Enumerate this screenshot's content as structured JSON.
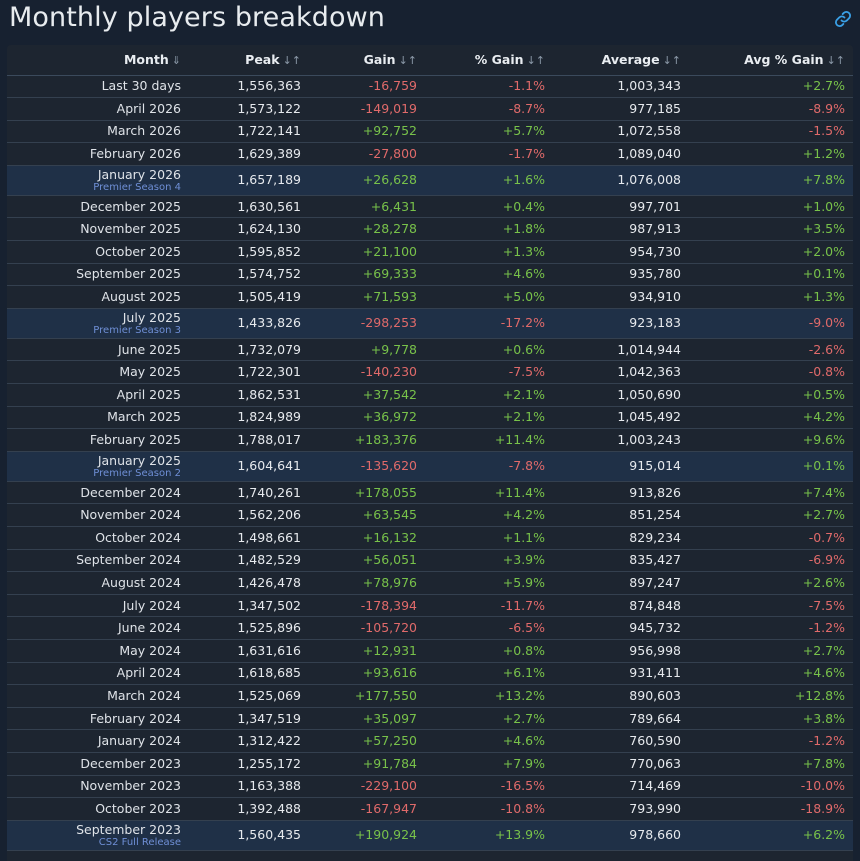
{
  "title": "Monthly players breakdown",
  "columns": [
    {
      "label": "Month",
      "sort": "⇓"
    },
    {
      "label": "Peak",
      "sort": "↓↑"
    },
    {
      "label": "Gain",
      "sort": "↓↑"
    },
    {
      "label": "% Gain",
      "sort": "↓↑"
    },
    {
      "label": "Average",
      "sort": "↓↑"
    },
    {
      "label": "Avg % Gain",
      "sort": "↓↑"
    }
  ],
  "rows": [
    {
      "month": "Last 30 days",
      "peak": "1,556,363",
      "gain": "-16,759",
      "pgain": "-1.1%",
      "avg": "1,003,343",
      "apgain": "+2.7%"
    },
    {
      "month": "April 2026",
      "peak": "1,573,122",
      "gain": "-149,019",
      "pgain": "-8.7%",
      "avg": "977,185",
      "apgain": "-8.9%"
    },
    {
      "month": "March 2026",
      "peak": "1,722,141",
      "gain": "+92,752",
      "pgain": "+5.7%",
      "avg": "1,072,558",
      "apgain": "-1.5%"
    },
    {
      "month": "February 2026",
      "peak": "1,629,389",
      "gain": "-27,800",
      "pgain": "-1.7%",
      "avg": "1,089,040",
      "apgain": "+1.2%"
    },
    {
      "month": "January 2026",
      "sub": "Premier Season 4",
      "peak": "1,657,189",
      "gain": "+26,628",
      "pgain": "+1.6%",
      "avg": "1,076,008",
      "apgain": "+7.8%"
    },
    {
      "month": "December 2025",
      "peak": "1,630,561",
      "gain": "+6,431",
      "pgain": "+0.4%",
      "avg": "997,701",
      "apgain": "+1.0%"
    },
    {
      "month": "November 2025",
      "peak": "1,624,130",
      "gain": "+28,278",
      "pgain": "+1.8%",
      "avg": "987,913",
      "apgain": "+3.5%"
    },
    {
      "month": "October 2025",
      "peak": "1,595,852",
      "gain": "+21,100",
      "pgain": "+1.3%",
      "avg": "954,730",
      "apgain": "+2.0%"
    },
    {
      "month": "September 2025",
      "peak": "1,574,752",
      "gain": "+69,333",
      "pgain": "+4.6%",
      "avg": "935,780",
      "apgain": "+0.1%"
    },
    {
      "month": "August 2025",
      "peak": "1,505,419",
      "gain": "+71,593",
      "pgain": "+5.0%",
      "avg": "934,910",
      "apgain": "+1.3%"
    },
    {
      "month": "July 2025",
      "sub": "Premier Season 3",
      "peak": "1,433,826",
      "gain": "-298,253",
      "pgain": "-17.2%",
      "avg": "923,183",
      "apgain": "-9.0%"
    },
    {
      "month": "June 2025",
      "peak": "1,732,079",
      "gain": "+9,778",
      "pgain": "+0.6%",
      "avg": "1,014,944",
      "apgain": "-2.6%"
    },
    {
      "month": "May 2025",
      "peak": "1,722,301",
      "gain": "-140,230",
      "pgain": "-7.5%",
      "avg": "1,042,363",
      "apgain": "-0.8%"
    },
    {
      "month": "April 2025",
      "peak": "1,862,531",
      "gain": "+37,542",
      "pgain": "+2.1%",
      "avg": "1,050,690",
      "apgain": "+0.5%"
    },
    {
      "month": "March 2025",
      "peak": "1,824,989",
      "gain": "+36,972",
      "pgain": "+2.1%",
      "avg": "1,045,492",
      "apgain": "+4.2%"
    },
    {
      "month": "February 2025",
      "peak": "1,788,017",
      "gain": "+183,376",
      "pgain": "+11.4%",
      "avg": "1,003,243",
      "apgain": "+9.6%"
    },
    {
      "month": "January 2025",
      "sub": "Premier Season 2",
      "peak": "1,604,641",
      "gain": "-135,620",
      "pgain": "-7.8%",
      "avg": "915,014",
      "apgain": "+0.1%"
    },
    {
      "month": "December 2024",
      "peak": "1,740,261",
      "gain": "+178,055",
      "pgain": "+11.4%",
      "avg": "913,826",
      "apgain": "+7.4%"
    },
    {
      "month": "November 2024",
      "peak": "1,562,206",
      "gain": "+63,545",
      "pgain": "+4.2%",
      "avg": "851,254",
      "apgain": "+2.7%"
    },
    {
      "month": "October 2024",
      "peak": "1,498,661",
      "gain": "+16,132",
      "pgain": "+1.1%",
      "avg": "829,234",
      "apgain": "-0.7%"
    },
    {
      "month": "September 2024",
      "peak": "1,482,529",
      "gain": "+56,051",
      "pgain": "+3.9%",
      "avg": "835,427",
      "apgain": "-6.9%"
    },
    {
      "month": "August 2024",
      "peak": "1,426,478",
      "gain": "+78,976",
      "pgain": "+5.9%",
      "avg": "897,247",
      "apgain": "+2.6%"
    },
    {
      "month": "July 2024",
      "peak": "1,347,502",
      "gain": "-178,394",
      "pgain": "-11.7%",
      "avg": "874,848",
      "apgain": "-7.5%"
    },
    {
      "month": "June 2024",
      "peak": "1,525,896",
      "gain": "-105,720",
      "pgain": "-6.5%",
      "avg": "945,732",
      "apgain": "-1.2%"
    },
    {
      "month": "May 2024",
      "peak": "1,631,616",
      "gain": "+12,931",
      "pgain": "+0.8%",
      "avg": "956,998",
      "apgain": "+2.7%"
    },
    {
      "month": "April 2024",
      "peak": "1,618,685",
      "gain": "+93,616",
      "pgain": "+6.1%",
      "avg": "931,411",
      "apgain": "+4.6%"
    },
    {
      "month": "March 2024",
      "peak": "1,525,069",
      "gain": "+177,550",
      "pgain": "+13.2%",
      "avg": "890,603",
      "apgain": "+12.8%"
    },
    {
      "month": "February 2024",
      "peak": "1,347,519",
      "gain": "+35,097",
      "pgain": "+2.7%",
      "avg": "789,664",
      "apgain": "+3.8%"
    },
    {
      "month": "January 2024",
      "peak": "1,312,422",
      "gain": "+57,250",
      "pgain": "+4.6%",
      "avg": "760,590",
      "apgain": "-1.2%"
    },
    {
      "month": "December 2023",
      "peak": "1,255,172",
      "gain": "+91,784",
      "pgain": "+7.9%",
      "avg": "770,063",
      "apgain": "+7.8%"
    },
    {
      "month": "November 2023",
      "peak": "1,163,388",
      "gain": "-229,100",
      "pgain": "-16.5%",
      "avg": "714,469",
      "apgain": "-10.0%"
    },
    {
      "month": "October 2023",
      "peak": "1,392,488",
      "gain": "-167,947",
      "pgain": "-10.8%",
      "avg": "793,990",
      "apgain": "-18.9%"
    },
    {
      "month": "September 2023",
      "sub": "CS2 Full Release",
      "peak": "1,560,435",
      "gain": "+190,924",
      "pgain": "+13.9%",
      "avg": "978,660",
      "apgain": "+6.2%"
    }
  ]
}
